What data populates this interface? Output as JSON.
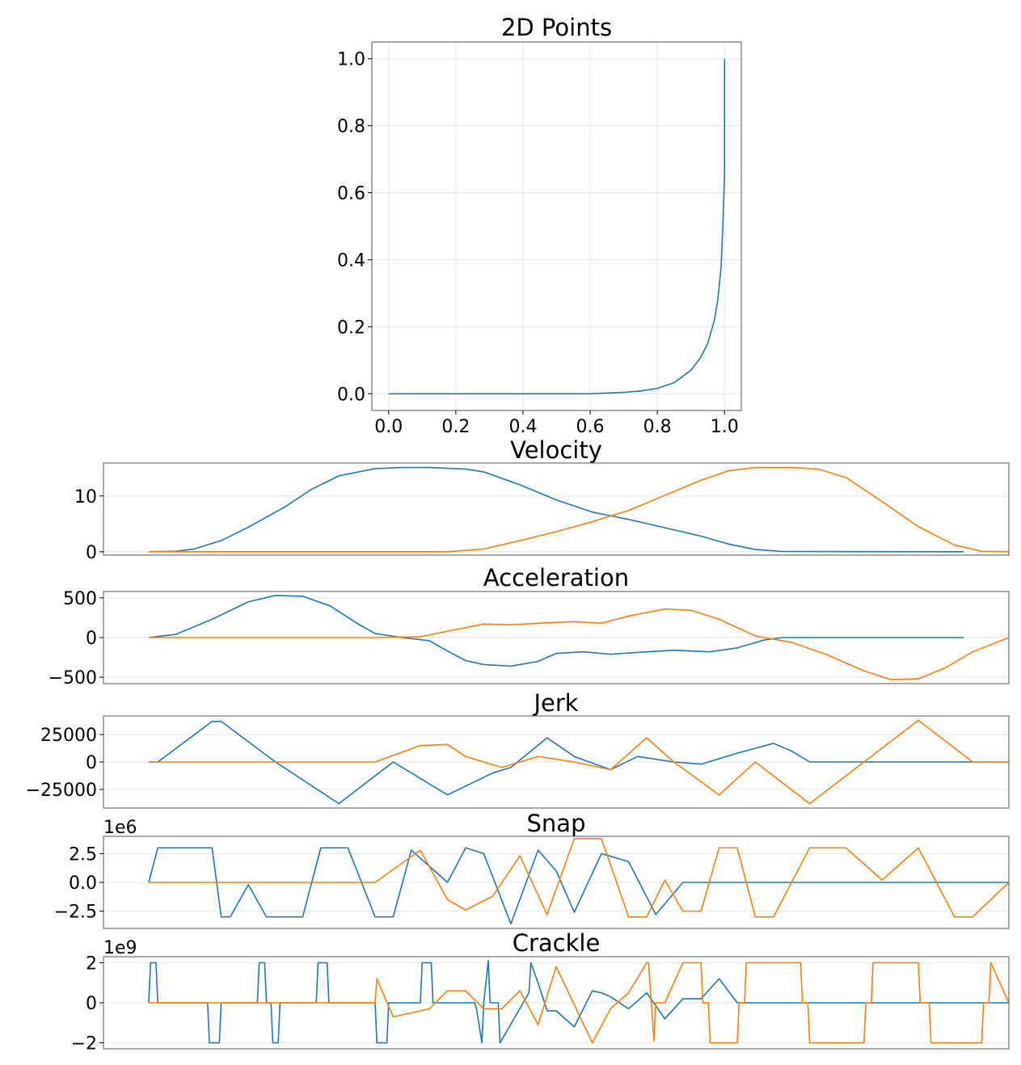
{
  "chart_data": [
    {
      "type": "line",
      "title": "2D Points",
      "xlabel": "",
      "ylabel": "",
      "xlim": [
        -0.05,
        1.05
      ],
      "ylim": [
        -0.05,
        1.05
      ],
      "grid": true,
      "xticks": [
        0.0,
        0.2,
        0.4,
        0.6,
        0.8,
        1.0
      ],
      "xtick_labels": [
        "0.0",
        "0.2",
        "0.4",
        "0.6",
        "0.8",
        "1.0"
      ],
      "yticks": [
        0.0,
        0.2,
        0.4,
        0.6,
        0.8,
        1.0
      ],
      "ytick_labels": [
        "0.0",
        "0.2",
        "0.4",
        "0.6",
        "0.8",
        "1.0"
      ],
      "series": [
        {
          "color": "#1f77b4",
          "x": [
            0.0,
            0.2,
            0.4,
            0.6,
            0.65,
            0.7,
            0.75,
            0.8,
            0.85,
            0.9,
            0.93,
            0.95,
            0.97,
            0.98,
            0.99,
            0.995,
            1.0,
            1.0
          ],
          "y": [
            0.0,
            0.0,
            0.0,
            0.0,
            0.002,
            0.004,
            0.008,
            0.016,
            0.033,
            0.07,
            0.11,
            0.15,
            0.22,
            0.28,
            0.38,
            0.5,
            0.65,
            1.0
          ]
        }
      ]
    },
    {
      "type": "line",
      "title": "Velocity",
      "xlim": [
        0,
        1
      ],
      "ylim": [
        -0.6,
        15.9
      ],
      "grid": true,
      "yticks": [
        0,
        10
      ],
      "ytick_labels": [
        "0",
        "10"
      ],
      "series": [
        {
          "color": "#1f77b4",
          "x": [
            0.05,
            0.08,
            0.1,
            0.13,
            0.16,
            0.2,
            0.23,
            0.26,
            0.3,
            0.33,
            0.36,
            0.4,
            0.42,
            0.46,
            0.5,
            0.54,
            0.58,
            0.62,
            0.66,
            0.69,
            0.72,
            0.75,
            0.95
          ],
          "y": [
            0,
            0.1,
            0.5,
            2.0,
            4.4,
            8.0,
            11.2,
            13.6,
            14.9,
            15.1,
            15.1,
            14.8,
            14.3,
            12.0,
            9.3,
            7.1,
            5.8,
            4.3,
            2.8,
            1.4,
            0.4,
            0.05,
            0
          ]
        },
        {
          "color": "#ff7f0e",
          "x": [
            0.05,
            0.3,
            0.38,
            0.42,
            0.46,
            0.5,
            0.54,
            0.58,
            0.62,
            0.66,
            0.69,
            0.72,
            0.76,
            0.79,
            0.82,
            0.86,
            0.9,
            0.94,
            0.97,
            1.0
          ],
          "y": [
            0,
            0,
            0,
            0.5,
            2.0,
            3.6,
            5.4,
            7.4,
            10.1,
            12.8,
            14.5,
            15.1,
            15.1,
            14.8,
            13.3,
            9.0,
            4.5,
            1.2,
            0.1,
            0
          ]
        }
      ]
    },
    {
      "type": "line",
      "title": "Acceleration",
      "xlim": [
        0,
        1
      ],
      "ylim": [
        -580,
        580
      ],
      "grid": true,
      "yticks": [
        -500,
        0,
        500
      ],
      "ytick_labels": [
        "−500",
        "0",
        "500"
      ],
      "series": [
        {
          "color": "#1f77b4",
          "x": [
            0.05,
            0.08,
            0.12,
            0.16,
            0.19,
            0.22,
            0.25,
            0.28,
            0.3,
            0.33,
            0.36,
            0.38,
            0.4,
            0.42,
            0.45,
            0.48,
            0.5,
            0.53,
            0.56,
            0.6,
            0.63,
            0.67,
            0.7,
            0.73,
            0.75,
            0.78,
            0.95
          ],
          "y": [
            0,
            40,
            230,
            450,
            530,
            520,
            400,
            180,
            50,
            0,
            -40,
            -170,
            -290,
            -340,
            -360,
            -300,
            -200,
            -180,
            -210,
            -180,
            -160,
            -180,
            -130,
            -30,
            0,
            0,
            0
          ]
        },
        {
          "color": "#ff7f0e",
          "x": [
            0.05,
            0.3,
            0.35,
            0.38,
            0.42,
            0.45,
            0.48,
            0.52,
            0.55,
            0.58,
            0.62,
            0.65,
            0.68,
            0.72,
            0.76,
            0.8,
            0.84,
            0.87,
            0.9,
            0.93,
            0.96,
            1.0
          ],
          "y": [
            0,
            0,
            10,
            80,
            170,
            160,
            180,
            200,
            180,
            270,
            360,
            340,
            230,
            20,
            -60,
            -220,
            -420,
            -530,
            -520,
            -380,
            -180,
            0
          ]
        }
      ]
    },
    {
      "type": "line",
      "title": "Jerk",
      "xlim": [
        0,
        1
      ],
      "ylim": [
        -42000,
        42000
      ],
      "grid": true,
      "yticks": [
        -25000,
        0,
        25000
      ],
      "ytick_labels": [
        "−25000",
        "0",
        "25000"
      ],
      "series": [
        {
          "color": "#1f77b4",
          "x": [
            0.05,
            0.06,
            0.12,
            0.13,
            0.19,
            0.26,
            0.32,
            0.38,
            0.43,
            0.45,
            0.49,
            0.52,
            0.56,
            0.59,
            0.63,
            0.66,
            0.7,
            0.74,
            0.76,
            0.78,
            1.0
          ],
          "y": [
            0,
            0,
            37000,
            37000,
            0,
            -38000,
            0,
            -30000,
            -10000,
            -5000,
            22000,
            5000,
            -7000,
            5000,
            0,
            -2000,
            8000,
            17000,
            10000,
            0,
            0
          ]
        },
        {
          "color": "#ff7f0e",
          "x": [
            0.05,
            0.3,
            0.35,
            0.38,
            0.4,
            0.44,
            0.48,
            0.52,
            0.56,
            0.6,
            0.63,
            0.68,
            0.72,
            0.78,
            0.84,
            0.9,
            0.96,
            1.0
          ],
          "y": [
            0,
            0,
            15000,
            16000,
            5000,
            -5000,
            5000,
            0,
            -7000,
            22000,
            0,
            -30000,
            0,
            -38000,
            0,
            38000,
            0,
            0
          ]
        }
      ]
    },
    {
      "type": "line",
      "title": "Snap",
      "scale_label": "1e6",
      "xlim": [
        0,
        1
      ],
      "ylim": [
        -4.0,
        4.0
      ],
      "grid": true,
      "yticks": [
        -2.5,
        0.0,
        2.5
      ],
      "ytick_labels": [
        "−2.5",
        "0.0",
        "2.5"
      ],
      "series": [
        {
          "color": "#1f77b4",
          "x": [
            0.05,
            0.06,
            0.1,
            0.11,
            0.12,
            0.13,
            0.14,
            0.16,
            0.18,
            0.22,
            0.24,
            0.27,
            0.3,
            0.32,
            0.34,
            0.38,
            0.4,
            0.42,
            0.45,
            0.48,
            0.5,
            0.52,
            0.55,
            0.58,
            0.61,
            0.64,
            0.67,
            0.7,
            0.73,
            0.75,
            0.78,
            1.0
          ],
          "y": [
            0,
            3.0,
            3.0,
            3.0,
            3.0,
            -3.0,
            -3.0,
            -0.2,
            -3.0,
            -3.0,
            3.0,
            3.0,
            -3.0,
            -3.0,
            2.8,
            0.0,
            3.0,
            2.5,
            -3.6,
            2.8,
            1.0,
            -2.6,
            2.5,
            1.8,
            -2.8,
            0.0,
            0.0,
            0.0,
            0.0,
            0.0,
            0.0,
            0.0
          ]
        },
        {
          "color": "#ff7f0e",
          "x": [
            0.05,
            0.3,
            0.35,
            0.38,
            0.4,
            0.43,
            0.46,
            0.49,
            0.52,
            0.55,
            0.58,
            0.6,
            0.62,
            0.64,
            0.66,
            0.68,
            0.7,
            0.72,
            0.74,
            0.78,
            0.82,
            0.86,
            0.9,
            0.94,
            0.96,
            1.0
          ],
          "y": [
            0,
            0,
            2.8,
            -1.5,
            -2.4,
            -1.2,
            2.3,
            -2.8,
            3.8,
            3.8,
            -3.0,
            -3.0,
            0.2,
            -2.5,
            -2.5,
            3.0,
            3.0,
            -3.0,
            -3.0,
            3.0,
            3.0,
            0.2,
            3.0,
            -3.0,
            -3.0,
            0
          ]
        }
      ]
    },
    {
      "type": "line",
      "title": "Crackle",
      "scale_label": "1e9",
      "xlim": [
        0,
        1
      ],
      "ylim": [
        -2.3,
        2.3
      ],
      "grid": true,
      "yticks": [
        -2,
        0,
        2
      ],
      "ytick_labels": [
        "−2",
        "0",
        "2"
      ],
      "series": [
        {
          "color": "#1f77b4",
          "x": [
            0.05,
            0.052,
            0.054,
            0.058,
            0.06,
            0.115,
            0.117,
            0.128,
            0.13,
            0.17,
            0.172,
            0.178,
            0.18,
            0.185,
            0.187,
            0.193,
            0.195,
            0.235,
            0.237,
            0.247,
            0.249,
            0.3,
            0.302,
            0.313,
            0.315,
            0.35,
            0.352,
            0.362,
            0.364,
            0.41,
            0.412,
            0.418,
            0.42,
            0.425,
            0.427,
            0.436,
            0.438,
            0.47,
            0.472,
            0.48,
            0.49,
            0.5,
            0.52,
            0.54,
            0.55,
            0.56,
            0.58,
            0.6,
            0.62,
            0.64,
            0.66,
            0.68,
            0.7,
            0.72,
            1.0
          ],
          "y": [
            0,
            2.0,
            2.0,
            2.0,
            0,
            0,
            -2.0,
            -2.0,
            0,
            0,
            2.0,
            2.0,
            0,
            0,
            -2.0,
            -2.0,
            0,
            0,
            2.0,
            2.0,
            0,
            0,
            -2.0,
            -2.0,
            0,
            0,
            2.0,
            2.0,
            0,
            0,
            -0.3,
            -2.0,
            0,
            2.1,
            0,
            0,
            -2.0,
            0.5,
            2.0,
            1.0,
            -0.4,
            -0.4,
            -1.2,
            0.6,
            0.5,
            0.3,
            -0.3,
            0.5,
            -0.8,
            0.2,
            0.2,
            1.2,
            0,
            0,
            0
          ]
        },
        {
          "color": "#ff7f0e",
          "x": [
            0.05,
            0.3,
            0.302,
            0.32,
            0.34,
            0.36,
            0.38,
            0.4,
            0.42,
            0.44,
            0.46,
            0.48,
            0.5,
            0.52,
            0.54,
            0.56,
            0.58,
            0.6,
            0.602,
            0.608,
            0.61,
            0.62,
            0.64,
            0.66,
            0.662,
            0.668,
            0.67,
            0.7,
            0.702,
            0.708,
            0.71,
            0.77,
            0.772,
            0.778,
            0.78,
            0.84,
            0.842,
            0.848,
            0.85,
            0.9,
            0.902,
            0.912,
            0.914,
            0.97,
            0.972,
            0.978,
            0.98,
            1.0
          ],
          "y": [
            0,
            0,
            1.2,
            -0.7,
            -0.5,
            -0.3,
            0.6,
            0.6,
            -0.3,
            -0.3,
            0.6,
            -1.1,
            1.8,
            -0.1,
            -2.0,
            -0.3,
            0.5,
            2.0,
            2.0,
            -1.9,
            0,
            0,
            2.0,
            2.0,
            0,
            0,
            -2.0,
            -2.0,
            0,
            0,
            2.0,
            2.0,
            0,
            0,
            -2.0,
            -2.0,
            0,
            0,
            2.0,
            2.0,
            0,
            0,
            -2.0,
            -2.0,
            0,
            0,
            2.0,
            0
          ]
        }
      ]
    }
  ]
}
